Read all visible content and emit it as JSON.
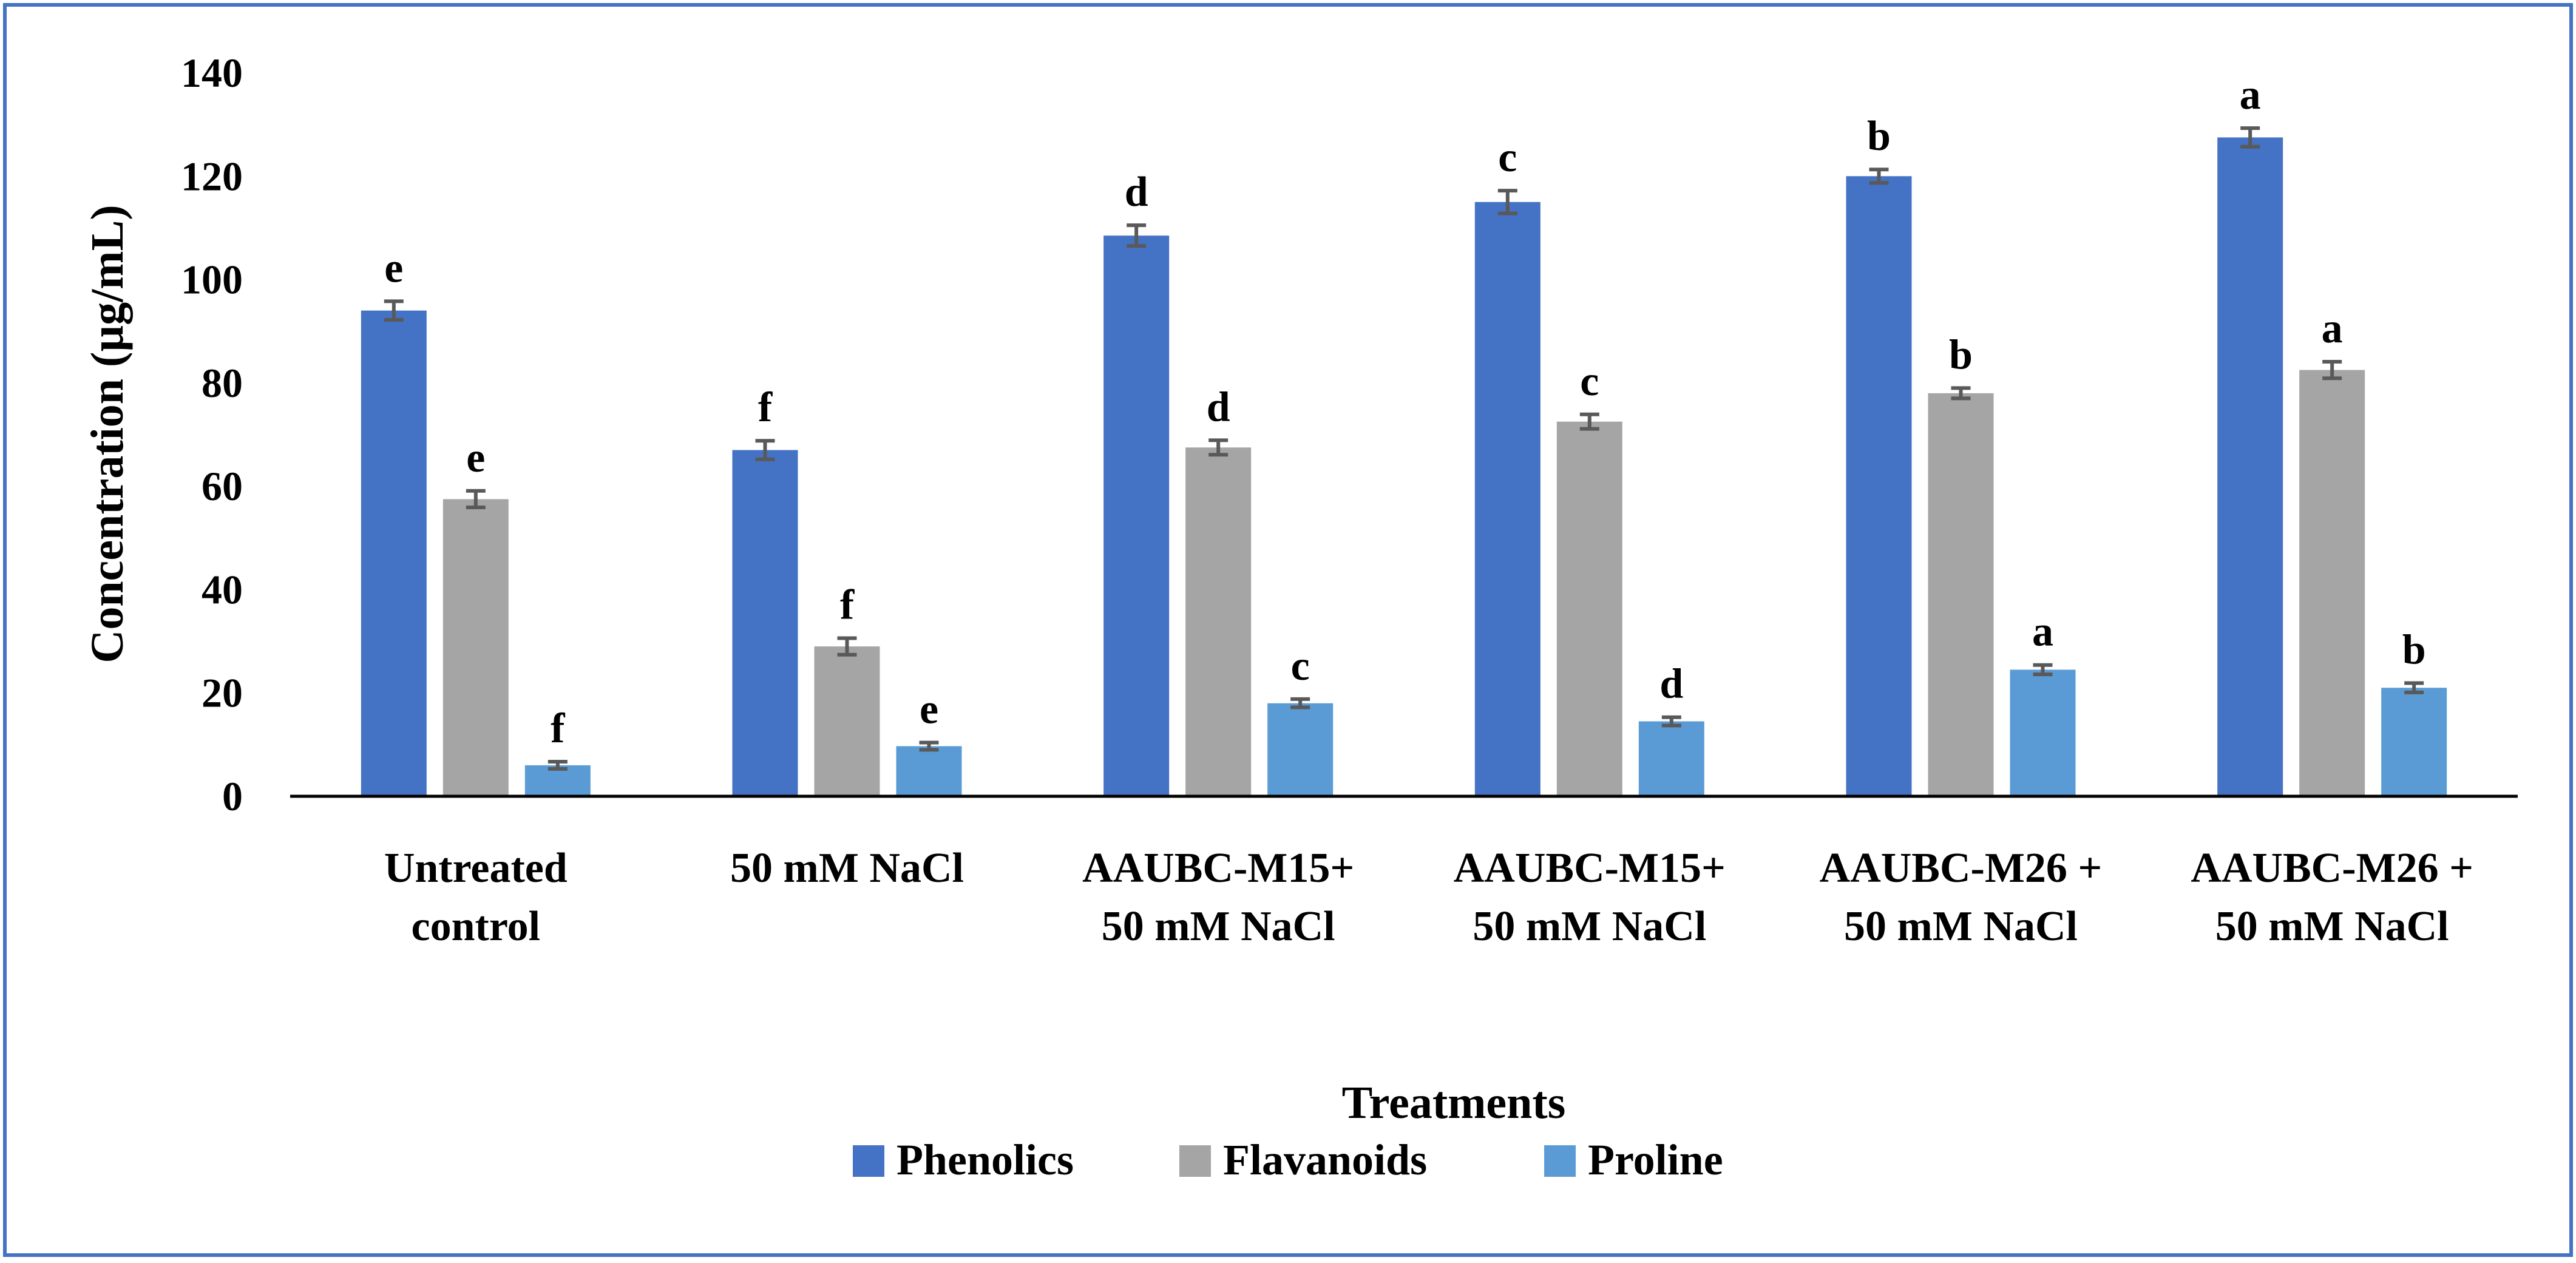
{
  "chart_data": {
    "type": "bar",
    "title": "",
    "xlabel": "Treatments",
    "ylabel": "Concentration (µg/mL)",
    "ylim": [
      0,
      140
    ],
    "yticks": [
      0,
      20,
      40,
      60,
      80,
      100,
      120,
      140
    ],
    "grid": false,
    "legend_position": "bottom",
    "categories": [
      [
        "Untreated",
        "control"
      ],
      [
        "50 mM NaCl"
      ],
      [
        "AAUBC-M15+",
        "50 mM NaCl"
      ],
      [
        "AAUBC-M15+",
        "50 mM NaCl"
      ],
      [
        "AAUBC-M26 +",
        "50 mM NaCl"
      ],
      [
        "AAUBC-M26 +",
        "50 mM NaCl"
      ]
    ],
    "series": [
      {
        "name": "Phenolics",
        "color": "#4472C4",
        "values": [
          94,
          67,
          108.5,
          115,
          120,
          127.5
        ],
        "errors": [
          1.8,
          1.8,
          2.0,
          2.2,
          1.3,
          1.8
        ],
        "letters": [
          "e",
          "f",
          "d",
          "c",
          "b",
          "a"
        ]
      },
      {
        "name": "Flavanoids",
        "color": "#A5A5A5",
        "values": [
          57.5,
          29,
          67.5,
          72.5,
          78,
          82.5
        ],
        "errors": [
          1.6,
          1.6,
          1.4,
          1.4,
          1.0,
          1.6
        ],
        "letters": [
          "e",
          "f",
          "d",
          "c",
          "b",
          "a"
        ]
      },
      {
        "name": "Proline",
        "color": "#5B9BD5",
        "values": [
          6,
          9.7,
          18,
          14.5,
          24.5,
          21
        ],
        "errors": [
          0.7,
          0.7,
          0.8,
          0.8,
          0.9,
          0.9
        ],
        "letters": [
          "f",
          "e",
          "c",
          "d",
          "a",
          "b"
        ]
      }
    ]
  }
}
